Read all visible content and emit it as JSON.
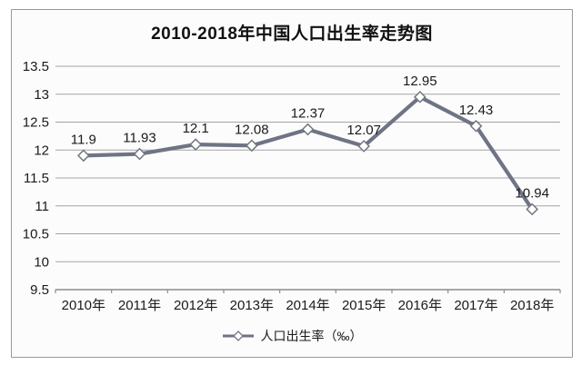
{
  "chart_data": {
    "type": "line",
    "title": "2010-2018年中国人口出生率走势图",
    "categories": [
      "2010年",
      "2011年",
      "2012年",
      "2013年",
      "2014年",
      "2015年",
      "2016年",
      "2017年",
      "2018年"
    ],
    "series": [
      {
        "name": "人口出生率（‰）",
        "values": [
          11.9,
          11.93,
          12.1,
          12.08,
          12.37,
          12.07,
          12.95,
          12.43,
          10.94
        ]
      }
    ],
    "data_labels": [
      "11.9",
      "11.93",
      "12.1",
      "12.08",
      "12.37",
      "12.07",
      "12.95",
      "12.43",
      "10.94"
    ],
    "yticks": [
      9.5,
      10,
      10.5,
      11,
      11.5,
      12,
      12.5,
      13,
      13.5
    ],
    "ytick_labels": [
      "9.5",
      "10",
      "10.5",
      "11",
      "11.5",
      "12",
      "12.5",
      "13",
      "13.5"
    ],
    "ylim": [
      9.5,
      13.5
    ],
    "grid": true,
    "legend_position": "bottom",
    "marker": "diamond",
    "colors": {
      "line": "#6f7485",
      "marker_fill": "#ffffff",
      "marker_stroke": "#73767f",
      "grid": "#a3a3a3",
      "axis": "#8c8c8c",
      "text": "#1a1a1a",
      "background": "#fcfcfc",
      "frame_border": "#999999"
    }
  }
}
